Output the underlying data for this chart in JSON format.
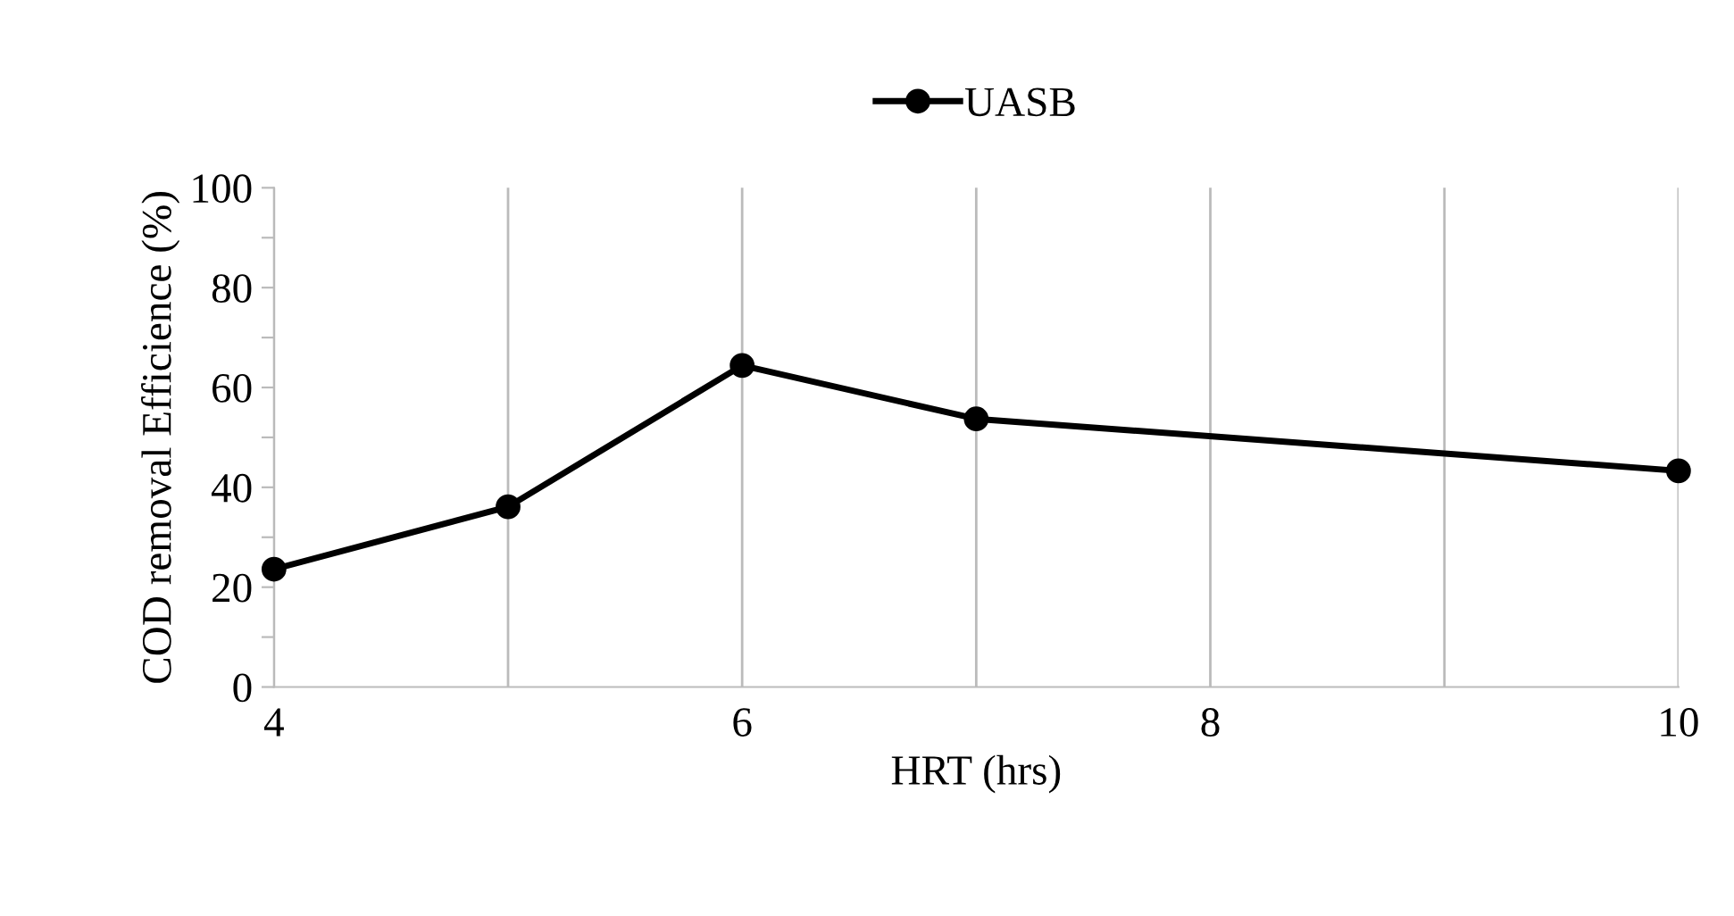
{
  "chart_data": {
    "type": "line",
    "xlabel": "HRT (hrs)",
    "ylabel": "COD removal Efficience (%)",
    "x": [
      4,
      5,
      6,
      7,
      10
    ],
    "series": [
      {
        "name": "UASB",
        "color": "#000000",
        "values": [
          23.6,
          36.1,
          64.4,
          53.7,
          43.3
        ]
      }
    ],
    "xlim": [
      4,
      10
    ],
    "xticks": [
      4,
      {
        "value": 5,
        "label": null
      },
      6,
      {
        "value": 7,
        "label": null
      },
      8,
      {
        "value": 9,
        "label": null
      },
      10
    ],
    "ylim": [
      0,
      100
    ],
    "yticks": [
      0,
      {
        "value": 10,
        "label": null
      },
      20,
      {
        "value": 30,
        "label": null
      },
      40,
      {
        "value": 50,
        "label": null
      },
      60,
      {
        "value": 70,
        "label": null
      },
      80,
      {
        "value": 90,
        "label": null
      },
      100
    ],
    "grid": "x",
    "legend": "top",
    "marker": "circle",
    "line_style": "solid"
  }
}
